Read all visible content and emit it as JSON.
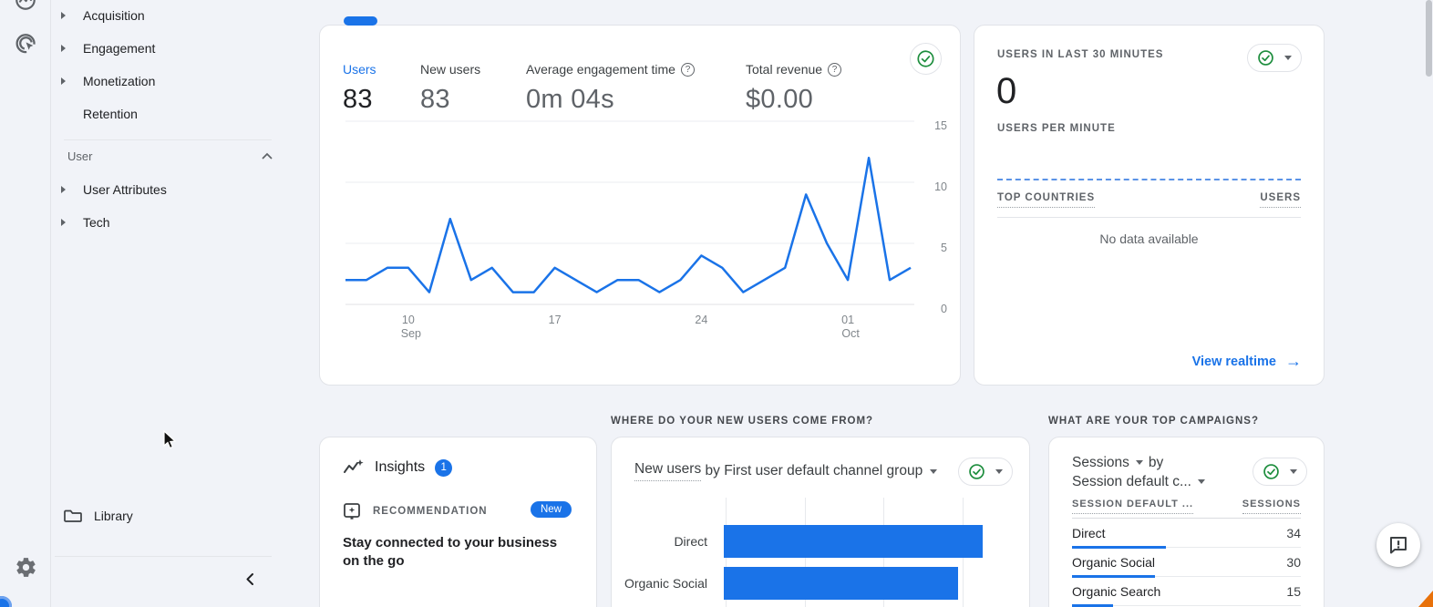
{
  "colors": {
    "accent_blue": "#1a73e8",
    "status_green": "#1e8e3e",
    "bar_blue": "#1a73e8"
  },
  "icon_rail": {
    "icons": [
      "reports-icon",
      "explore-icon",
      "settings-gear-icon"
    ]
  },
  "sidebar": {
    "items": [
      {
        "label": "Acquisition",
        "expandable": true
      },
      {
        "label": "Engagement",
        "expandable": true
      },
      {
        "label": "Monetization",
        "expandable": true
      },
      {
        "label": "Retention",
        "expandable": false
      }
    ],
    "user_section": {
      "label": "User",
      "items": [
        {
          "label": "User Attributes",
          "expandable": true
        },
        {
          "label": "Tech",
          "expandable": true
        }
      ]
    },
    "library_label": "Library"
  },
  "overview_card": {
    "metrics": [
      {
        "label": "Users",
        "value": "83",
        "active": true,
        "help": false
      },
      {
        "label": "New users",
        "value": "83",
        "active": false,
        "help": false
      },
      {
        "label": "Average engagement time",
        "value": "0m 04s",
        "active": false,
        "help": true
      },
      {
        "label": "Total revenue",
        "value": "$0.00",
        "active": false,
        "help": true
      }
    ]
  },
  "realtime_card": {
    "title": "USERS IN LAST 30 MINUTES",
    "value": "0",
    "per_minute_label": "USERS PER MINUTE",
    "countries_label": "TOP COUNTRIES",
    "users_label": "USERS",
    "empty_text": "No data available",
    "link_label": "View realtime",
    "arrow": "→"
  },
  "sections": {
    "channels_title": "WHERE DO YOUR NEW USERS COME FROM?",
    "campaigns_title": "WHAT ARE YOUR TOP CAMPAIGNS?"
  },
  "insights_card": {
    "title": "Insights",
    "badge": "1",
    "recommendation_label": "RECOMMENDATION",
    "new_badge": "New",
    "message": "Stay connected to your business on the go"
  },
  "channel_card": {
    "metric_label": "New users",
    "title_rest": " by First user default channel group"
  },
  "campaigns_card": {
    "metric": "Sessions",
    "by_label": "by",
    "dimension": "Session default c...",
    "col1": "SESSION DEFAULT ...",
    "col2": "SESSIONS"
  },
  "chart_data": [
    {
      "id": "users-over-time",
      "type": "line",
      "title": "Users over time",
      "x_start": "Sep 7",
      "x_end": "Oct 4",
      "values": [
        2,
        2,
        3,
        3,
        1,
        7,
        2,
        3,
        1,
        1,
        3,
        2,
        1,
        2,
        2,
        1,
        2,
        4,
        3,
        1,
        2,
        3,
        9,
        5,
        2,
        12,
        2,
        3
      ],
      "x_ticks": [
        {
          "i": 3,
          "label": "10",
          "month": "Sep"
        },
        {
          "i": 10,
          "label": "17",
          "month": ""
        },
        {
          "i": 17,
          "label": "24",
          "month": ""
        },
        {
          "i": 24,
          "label": "01",
          "month": "Oct"
        }
      ],
      "yticks": [
        0,
        5,
        10,
        15
      ],
      "ylim": [
        0,
        15
      ],
      "grid": true,
      "color": "#1a73e8"
    },
    {
      "id": "new-users-by-channel",
      "type": "bar",
      "orientation": "horizontal",
      "title": "New users by First user default channel group",
      "categories": [
        "Direct",
        "Organic Social"
      ],
      "values": [
        32,
        29
      ],
      "gridline_step": 10,
      "color": "#1a73e8"
    },
    {
      "id": "sessions-by-channel",
      "type": "table",
      "columns": [
        "SESSION DEFAULT ...",
        "SESSIONS"
      ],
      "rows": [
        {
          "label": "Direct",
          "value": 34
        },
        {
          "label": "Organic Social",
          "value": 30
        },
        {
          "label": "Organic Search",
          "value": 15
        }
      ],
      "bar_scale_max": 34
    }
  ]
}
